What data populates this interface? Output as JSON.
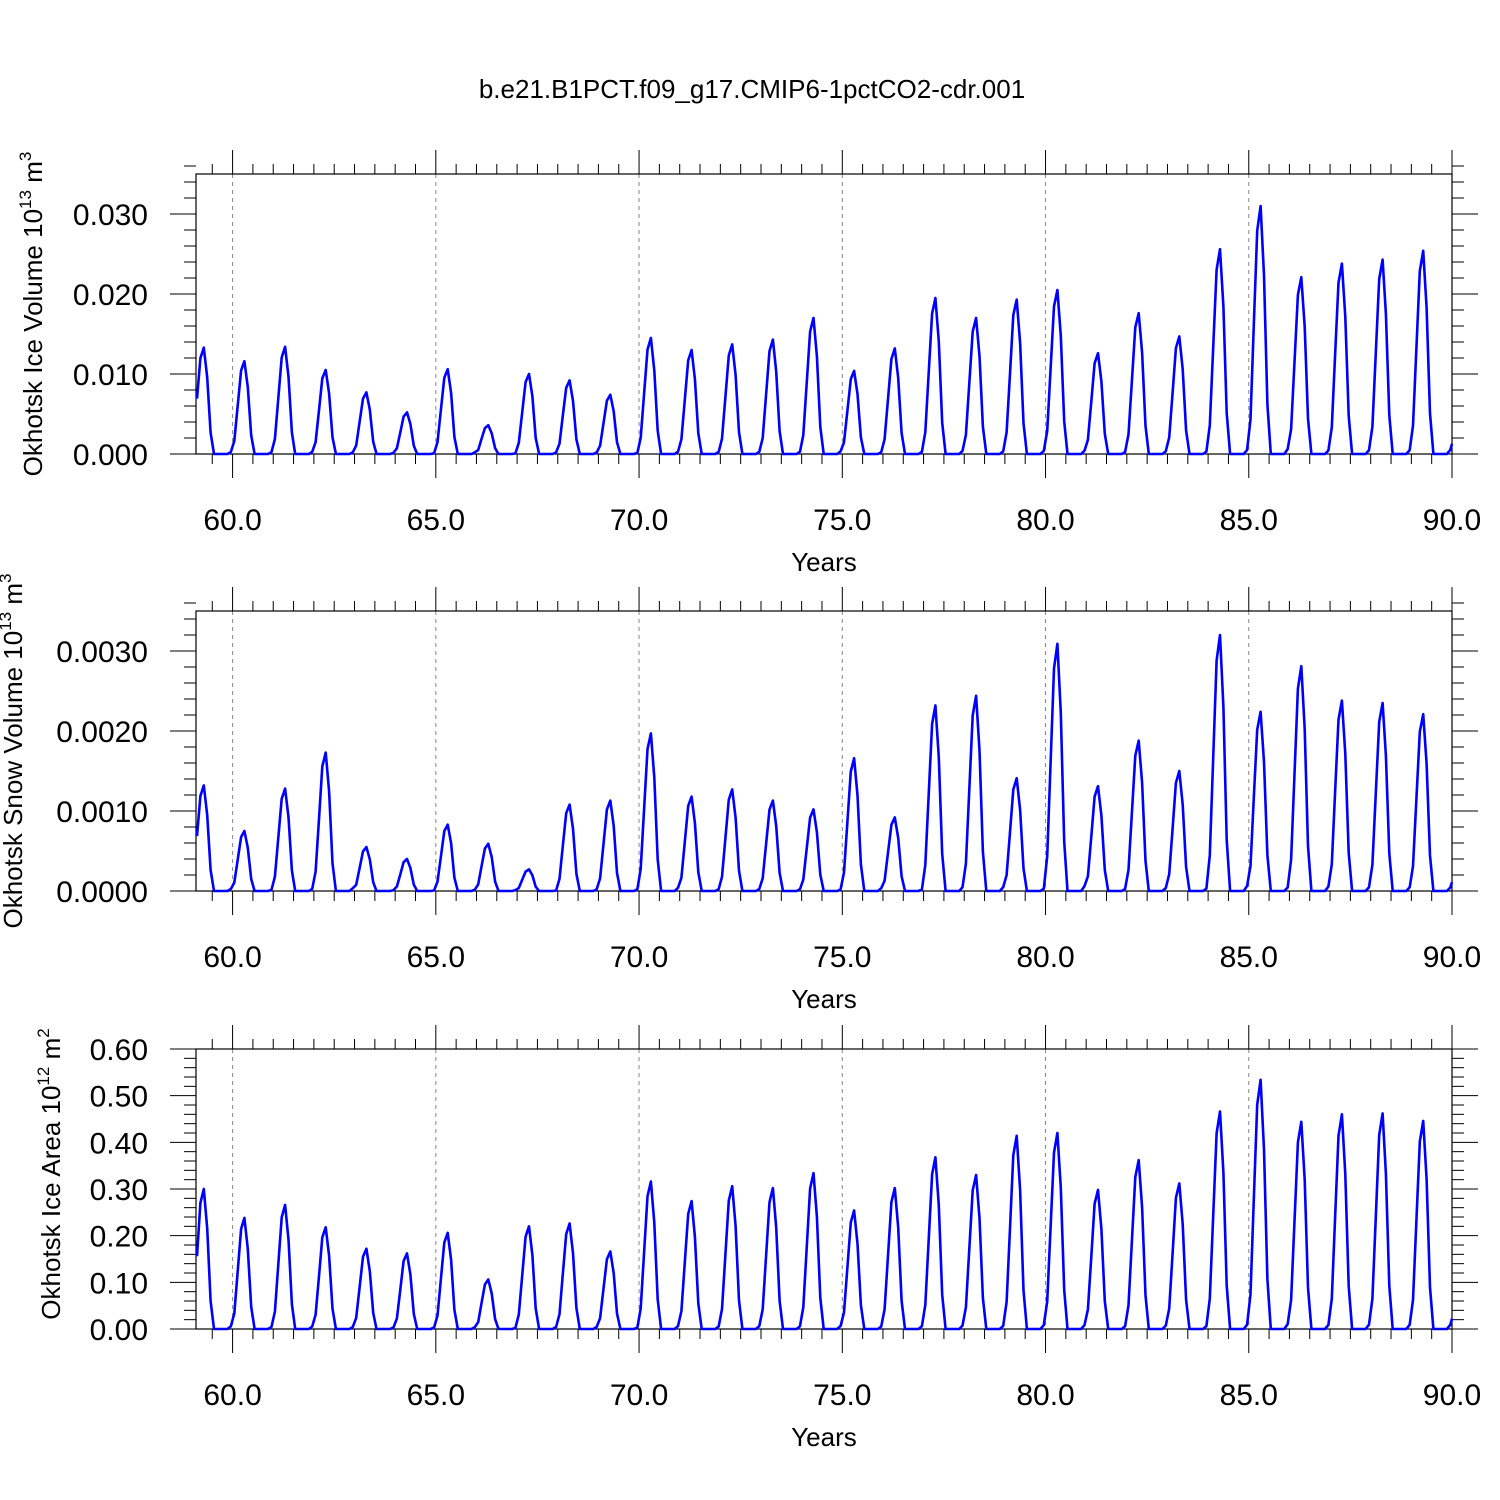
{
  "chart_data": {
    "title": "b.e21.B1PCT.f09_g17.CMIP6-1pctCO2-cdr.001",
    "series_color": "#0000ff",
    "panels": [
      {
        "type": "line",
        "ylabel_main": "Okhotsk Ice Volume 10",
        "ylabel_exp": "13",
        "ylabel_unit": " m",
        "ylabel_unit_exp": "3",
        "xlabel": "Years",
        "xlim": [
          59.1,
          90.0
        ],
        "ylim": [
          0.0,
          0.035
        ],
        "xticks": [
          60,
          65,
          70,
          75,
          80,
          85,
          90
        ],
        "xtick_labels": [
          "60.0",
          "65.0",
          "70.0",
          "75.0",
          "80.0",
          "85.0",
          "90.0"
        ],
        "yticks": [
          0.0,
          0.01,
          0.02,
          0.03
        ],
        "ytick_labels": [
          "0.000",
          "0.010",
          "0.020",
          "0.030"
        ],
        "ymajor": 0.01,
        "yminor": 0.002,
        "peaks": [
          0.0133,
          0.0116,
          0.0134,
          0.0105,
          0.0077,
          0.0052,
          0.0106,
          0.0036,
          0.01,
          0.0092,
          0.0074,
          0.0145,
          0.013,
          0.0137,
          0.0143,
          0.017,
          0.0104,
          0.0132,
          0.0195,
          0.017,
          0.0193,
          0.0205,
          0.0126,
          0.0176,
          0.0147,
          0.0256,
          0.031,
          0.0221,
          0.0238,
          0.0243,
          0.0254
        ]
      },
      {
        "type": "line",
        "ylabel_main": "Okhotsk Snow Volume 10",
        "ylabel_exp": "13",
        "ylabel_unit": " m",
        "ylabel_unit_exp": "3",
        "xlabel": "Years",
        "xlim": [
          59.1,
          90.0
        ],
        "ylim": [
          0.0,
          0.0035
        ],
        "xticks": [
          60,
          65,
          70,
          75,
          80,
          85,
          90
        ],
        "xtick_labels": [
          "60.0",
          "65.0",
          "70.0",
          "75.0",
          "80.0",
          "85.0",
          "90.0"
        ],
        "yticks": [
          0.0,
          0.001,
          0.002,
          0.003
        ],
        "ytick_labels": [
          "0.0000",
          "0.0010",
          "0.0020",
          "0.0030"
        ],
        "ymajor": 0.001,
        "yminor": 0.0002,
        "peaks": [
          0.00132,
          0.00075,
          0.00128,
          0.00173,
          0.00055,
          0.0004,
          0.00083,
          0.00059,
          0.00027,
          0.00108,
          0.00113,
          0.00197,
          0.00118,
          0.00127,
          0.00113,
          0.00102,
          0.00166,
          0.00092,
          0.00232,
          0.00244,
          0.00141,
          0.00309,
          0.00131,
          0.00188,
          0.0015,
          0.0032,
          0.00224,
          0.00281,
          0.00238,
          0.00235,
          0.00221
        ]
      },
      {
        "type": "line",
        "ylabel_main": "Okhotsk Ice Area 10",
        "ylabel_exp": "12",
        "ylabel_unit": " m",
        "ylabel_unit_exp": "2",
        "xlabel": "Years",
        "xlim": [
          59.1,
          90.0
        ],
        "ylim": [
          0.0,
          0.6
        ],
        "xticks": [
          60,
          65,
          70,
          75,
          80,
          85,
          90
        ],
        "xtick_labels": [
          "60.0",
          "65.0",
          "70.0",
          "75.0",
          "80.0",
          "85.0",
          "90.0"
        ],
        "yticks": [
          0.0,
          0.1,
          0.2,
          0.3,
          0.4,
          0.5,
          0.6
        ],
        "ytick_labels": [
          "0.00",
          "0.10",
          "0.20",
          "0.30",
          "0.40",
          "0.50",
          "0.60"
        ],
        "ymajor": 0.1,
        "yminor": 0.02,
        "peaks": [
          0.3,
          0.238,
          0.266,
          0.218,
          0.172,
          0.162,
          0.206,
          0.106,
          0.22,
          0.226,
          0.166,
          0.316,
          0.274,
          0.306,
          0.302,
          0.334,
          0.254,
          0.302,
          0.368,
          0.33,
          0.414,
          0.42,
          0.298,
          0.362,
          0.312,
          0.466,
          0.534,
          0.444,
          0.46,
          0.462,
          0.446
        ]
      }
    ]
  }
}
